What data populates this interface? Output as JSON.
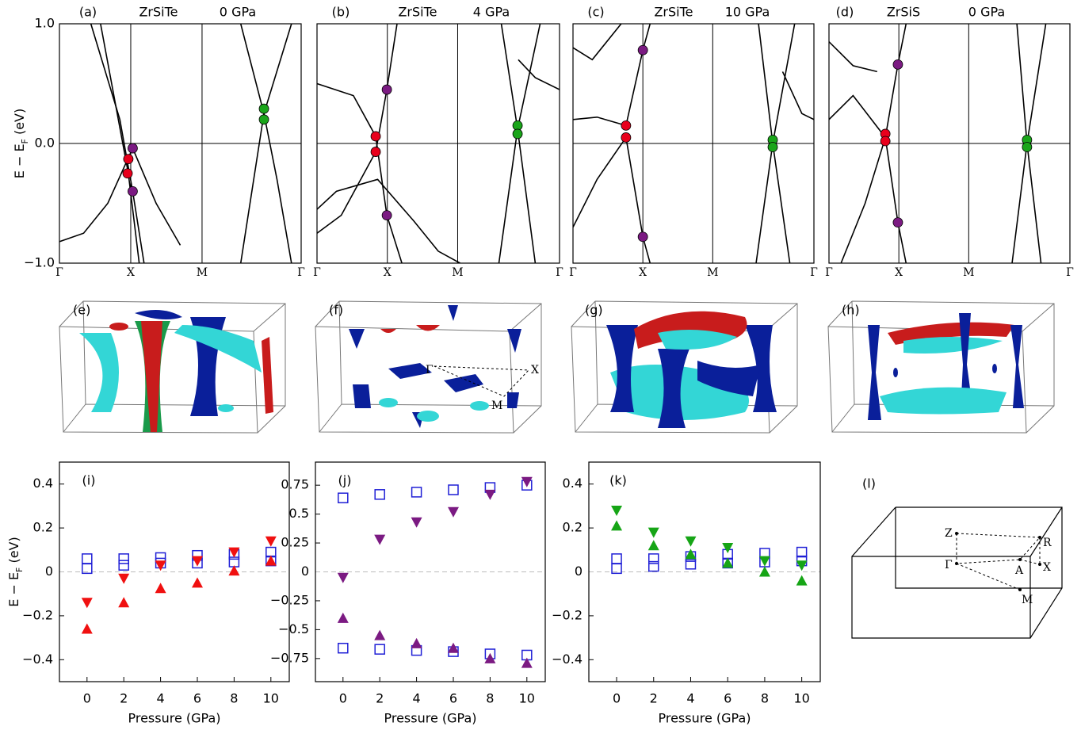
{
  "chart_data": [
    {
      "type": "band",
      "panel_label": "(a)",
      "title": "ZrSiTe",
      "subtitle": "0 GPa",
      "ylabel": [
        "E − E",
        "F",
        " (eV)"
      ],
      "xlim": [
        0,
        1
      ],
      "xticks": [
        {
          "value": 0,
          "label": "Γ"
        },
        {
          "value": 0.295,
          "label": "X"
        },
        {
          "value": 0.59,
          "label": "M"
        },
        {
          "value": 1,
          "label": "Γ"
        }
      ],
      "ylim": [
        -1,
        1
      ],
      "yticks": [
        {
          "value": -1,
          "label": "−1.0"
        },
        {
          "value": 0,
          "label": "0.0"
        },
        {
          "value": 1,
          "label": "1.0"
        }
      ],
      "ytick_labels": true,
      "bands": [
        {
          "x": [
            0.13,
            0.25,
            0.303,
            0.35
          ],
          "values": [
            1.0,
            0.2,
            -0.4,
            -1.0
          ]
        },
        {
          "x": [
            0.17,
            0.285,
            0.33
          ],
          "values": [
            1.0,
            -0.25,
            -1.0
          ]
        },
        {
          "x": [
            0.0,
            0.1,
            0.2,
            0.303,
            0.4,
            0.5
          ],
          "values": [
            -0.82,
            -0.75,
            -0.5,
            -0.04,
            -0.5,
            -0.85
          ]
        },
        {
          "x": [
            0.75,
            0.846,
            0.9,
            0.96
          ],
          "values": [
            1.0,
            0.25,
            -0.3,
            -1.0
          ]
        },
        {
          "x": [
            0.75,
            0.846,
            0.96
          ],
          "values": [
            -1.0,
            0.25,
            1.0
          ]
        }
      ],
      "crossings": [
        {
          "color": "#e8001c",
          "x": [
            0.285,
            0.282
          ],
          "values": [
            -0.13,
            -0.25
          ]
        },
        {
          "color": "#7b1a82",
          "x": [
            0.303,
            0.303
          ],
          "values": [
            -0.04,
            -0.4
          ]
        },
        {
          "color": "#1aa51a",
          "x": [
            0.846,
            0.846
          ],
          "values": [
            0.29,
            0.2
          ]
        }
      ]
    },
    {
      "type": "band",
      "panel_label": "(b)",
      "title": "ZrSiTe",
      "subtitle": "4 GPa",
      "xlim": [
        0,
        1
      ],
      "xticks": [
        {
          "value": 0,
          "label": "Γ"
        },
        {
          "value": 0.29,
          "label": "X"
        },
        {
          "value": 0.58,
          "label": "M"
        },
        {
          "value": 1,
          "label": "Γ"
        }
      ],
      "ylim": [
        -1,
        1
      ],
      "yticks": [
        -1,
        0,
        1
      ],
      "ytick_labels": false,
      "bands": [
        {
          "x": [
            0.0,
            0.15,
            0.242,
            0.288,
            0.35
          ],
          "values": [
            0.5,
            0.4,
            0.06,
            -0.6,
            -1.0
          ]
        },
        {
          "x": [
            0.0,
            0.1,
            0.242,
            0.288,
            0.33
          ],
          "values": [
            -0.75,
            -0.6,
            -0.07,
            0.45,
            1.0
          ]
        },
        {
          "x": [
            0.0,
            0.08,
            0.25,
            0.4,
            0.5,
            0.59
          ],
          "values": [
            -0.55,
            -0.4,
            -0.3,
            -0.65,
            -0.9,
            -1.0
          ]
        },
        {
          "x": [
            0.76,
            0.827,
            0.9
          ],
          "values": [
            1.0,
            0.12,
            -1.0
          ]
        },
        {
          "x": [
            0.75,
            0.827,
            0.92
          ],
          "values": [
            -1.0,
            0.12,
            1.0
          ]
        },
        {
          "x": [
            0.83,
            0.9,
            1.0
          ],
          "values": [
            0.7,
            0.55,
            0.45
          ]
        }
      ],
      "crossings": [
        {
          "color": "#e8001c",
          "x": [
            0.242,
            0.242
          ],
          "values": [
            0.06,
            -0.07
          ]
        },
        {
          "color": "#7b1a82",
          "x": [
            0.288,
            0.288
          ],
          "values": [
            0.45,
            -0.6
          ]
        },
        {
          "color": "#1aa51a",
          "x": [
            0.827,
            0.827
          ],
          "values": [
            0.15,
            0.08
          ]
        }
      ]
    },
    {
      "type": "band",
      "panel_label": "(c)",
      "title": "ZrSiTe",
      "subtitle": "10 GPa",
      "xlim": [
        0,
        1
      ],
      "xticks": [
        {
          "value": 0,
          "label": "Γ"
        },
        {
          "value": 0.29,
          "label": "X"
        },
        {
          "value": 0.58,
          "label": "M"
        },
        {
          "value": 1,
          "label": "Γ"
        }
      ],
      "ylim": [
        -1,
        1
      ],
      "yticks": [
        -1,
        0,
        1
      ],
      "ytick_labels": false,
      "bands": [
        {
          "x": [
            0.0,
            0.1,
            0.22,
            0.29,
            0.32
          ],
          "values": [
            0.2,
            0.22,
            0.15,
            0.78,
            1.0
          ]
        },
        {
          "x": [
            0.0,
            0.1,
            0.22,
            0.29,
            0.32
          ],
          "values": [
            -0.7,
            -0.3,
            0.05,
            -0.78,
            -1.0
          ]
        },
        {
          "x": [
            0.0,
            0.08,
            0.2
          ],
          "values": [
            0.8,
            0.7,
            1.0
          ]
        },
        {
          "x": [
            0.77,
            0.829,
            0.9
          ],
          "values": [
            1.0,
            0.0,
            -1.0
          ]
        },
        {
          "x": [
            0.76,
            0.829,
            0.92
          ],
          "values": [
            -1.0,
            0.0,
            1.0
          ]
        },
        {
          "x": [
            0.87,
            0.95,
            1.0
          ],
          "values": [
            0.6,
            0.25,
            0.2
          ]
        }
      ],
      "crossings": [
        {
          "color": "#e8001c",
          "x": [
            0.22,
            0.22
          ],
          "values": [
            0.15,
            0.05
          ]
        },
        {
          "color": "#7b1a82",
          "x": [
            0.29,
            0.29
          ],
          "values": [
            0.78,
            -0.78
          ]
        },
        {
          "color": "#1aa51a",
          "x": [
            0.829,
            0.829
          ],
          "values": [
            0.03,
            -0.03
          ]
        }
      ]
    },
    {
      "type": "band",
      "panel_label": "(d)",
      "title": "ZrSiS",
      "subtitle": "0 GPa",
      "xlim": [
        0,
        1
      ],
      "xticks": [
        {
          "value": 0,
          "label": "Γ"
        },
        {
          "value": 0.29,
          "label": "X"
        },
        {
          "value": 0.58,
          "label": "M"
        },
        {
          "value": 1,
          "label": "Γ"
        }
      ],
      "ylim": [
        -1,
        1
      ],
      "yticks": [
        -1,
        0,
        1
      ],
      "ytick_labels": false,
      "bands": [
        {
          "x": [
            0.0,
            0.1,
            0.234,
            0.286,
            0.32
          ],
          "values": [
            0.2,
            0.4,
            0.05,
            -0.66,
            -1.0
          ]
        },
        {
          "x": [
            0.05,
            0.15,
            0.234,
            0.286,
            0.32
          ],
          "values": [
            -1.0,
            -0.5,
            0.05,
            0.66,
            1.0
          ]
        },
        {
          "x": [
            0.0,
            0.1,
            0.2
          ],
          "values": [
            0.85,
            0.65,
            0.6
          ]
        },
        {
          "x": [
            0.78,
            0.822,
            0.88
          ],
          "values": [
            1.0,
            0.0,
            -1.0
          ]
        },
        {
          "x": [
            0.76,
            0.822,
            0.9
          ],
          "values": [
            -1.0,
            0.0,
            1.0
          ]
        }
      ],
      "crossings": [
        {
          "color": "#e8001c",
          "x": [
            0.234,
            0.234
          ],
          "values": [
            0.08,
            0.02
          ]
        },
        {
          "color": "#7b1a82",
          "x": [
            0.286,
            0.286
          ],
          "values": [
            0.66,
            -0.66
          ]
        },
        {
          "color": "#1aa51a",
          "x": [
            0.822,
            0.822
          ],
          "values": [
            0.03,
            -0.03
          ]
        }
      ]
    },
    {
      "type": "scatter",
      "panel_label": "(i)",
      "xlabel": "Pressure (GPa)",
      "ylabel": [
        "E − E",
        "F",
        " (eV)"
      ],
      "x": [
        0,
        2,
        4,
        6,
        8,
        10
      ],
      "xlim": [
        -1.5,
        11
      ],
      "xticks": [
        0,
        2,
        4,
        6,
        8,
        10
      ],
      "ylim": [
        -0.5,
        0.5
      ],
      "yticks": [
        {
          "value": -0.4,
          "label": "−0.4"
        },
        {
          "value": -0.2,
          "label": "−0.2"
        },
        0,
        0.2,
        0.4
      ],
      "zero_line": true,
      "series": [
        {
          "marker": "square",
          "color": "#1f1fd6",
          "values": [
            0.06,
            0.06,
            0.065,
            0.075,
            0.08,
            0.09
          ]
        },
        {
          "marker": "square",
          "color": "#1f1fd6",
          "values": [
            0.015,
            0.03,
            0.04,
            0.04,
            0.045,
            0.05
          ]
        },
        {
          "marker": "triangle-down",
          "color": "#f01010",
          "values": [
            -0.14,
            -0.03,
            0.03,
            0.05,
            0.09,
            0.14
          ]
        },
        {
          "marker": "triangle-up",
          "color": "#f01010",
          "values": [
            -0.26,
            -0.14,
            -0.075,
            -0.05,
            0.005,
            0.05
          ]
        }
      ]
    },
    {
      "type": "scatter",
      "panel_label": "(j)",
      "xlabel": "Pressure (GPa)",
      "x": [
        0,
        2,
        4,
        6,
        8,
        10
      ],
      "xlim": [
        -1.5,
        11
      ],
      "xticks": [
        0,
        2,
        4,
        6,
        8,
        10
      ],
      "ylim": [
        -0.95,
        0.95
      ],
      "yticks": [
        {
          "value": -0.75,
          "label": "−0.75"
        },
        {
          "value": -0.5,
          "label": "−0.5"
        },
        {
          "value": -0.25,
          "label": "−0.25"
        },
        0,
        0.25,
        0.5,
        0.75
      ],
      "zero_line": true,
      "series": [
        {
          "marker": "square",
          "color": "#1f1fd6",
          "values": [
            0.64,
            0.67,
            0.69,
            0.71,
            0.73,
            0.75
          ]
        },
        {
          "marker": "square",
          "color": "#1f1fd6",
          "values": [
            -0.66,
            -0.67,
            -0.68,
            -0.69,
            -0.71,
            -0.72
          ]
        },
        {
          "marker": "triangle-down",
          "color": "#7b1a82",
          "values": [
            -0.05,
            0.28,
            0.43,
            0.52,
            0.67,
            0.78
          ]
        },
        {
          "marker": "triangle-up",
          "color": "#7b1a82",
          "values": [
            -0.4,
            -0.55,
            -0.62,
            -0.66,
            -0.75,
            -0.79
          ]
        }
      ]
    },
    {
      "type": "scatter",
      "panel_label": "(k)",
      "xlabel": "Pressure (GPa)",
      "x": [
        0,
        2,
        4,
        6,
        8,
        10
      ],
      "xlim": [
        -1.5,
        11
      ],
      "xticks": [
        0,
        2,
        4,
        6,
        8,
        10
      ],
      "ylim": [
        -0.5,
        0.5
      ],
      "yticks": [
        {
          "value": -0.4,
          "label": "−0.4"
        },
        {
          "value": -0.2,
          "label": "−0.2"
        },
        0,
        0.2,
        0.4
      ],
      "zero_line": true,
      "series": [
        {
          "marker": "square",
          "color": "#1f1fd6",
          "values": [
            0.06,
            0.06,
            0.07,
            0.08,
            0.085,
            0.09
          ]
        },
        {
          "marker": "square",
          "color": "#1f1fd6",
          "values": [
            0.015,
            0.025,
            0.035,
            0.04,
            0.045,
            0.05
          ]
        },
        {
          "marker": "triangle-down",
          "color": "#16a516",
          "values": [
            0.28,
            0.18,
            0.14,
            0.11,
            0.05,
            0.03
          ]
        },
        {
          "marker": "triangle-up",
          "color": "#16a516",
          "values": [
            0.21,
            0.12,
            0.08,
            0.04,
            0.0,
            -0.04
          ]
        }
      ]
    }
  ],
  "figure_panels": [
    {
      "label": "(e)"
    },
    {
      "label": "(f)",
      "points": [
        "Γ",
        "X",
        "M"
      ]
    },
    {
      "label": "(g)"
    },
    {
      "label": "(h)"
    },
    {
      "label": "(l)",
      "points": [
        "Z",
        "R",
        "Γ",
        "A",
        "X",
        "M"
      ]
    }
  ]
}
